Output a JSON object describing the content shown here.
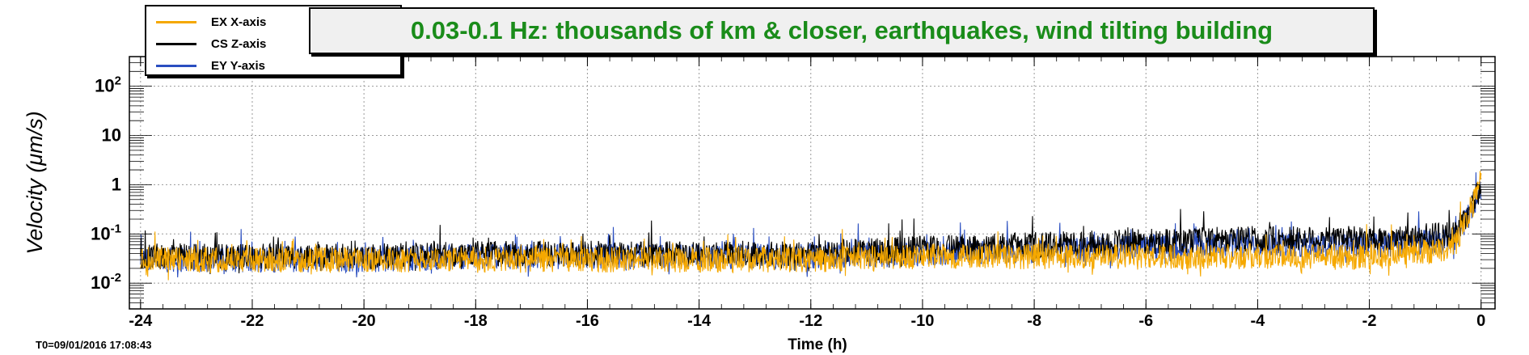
{
  "chart_data": {
    "type": "line",
    "title": "0.03-0.1 Hz: thousands of km & closer, earthquakes, wind tilting building",
    "xlabel": "Time (h)",
    "ylabel": "Velocity  (μm/s)",
    "xlim": [
      -24.2,
      0.25
    ],
    "ylim": [
      0.003,
      400
    ],
    "yscale": "log",
    "grid": true,
    "legend_position": "top-left",
    "x_ticks": [
      -24,
      -22,
      -20,
      -18,
      -16,
      -14,
      -12,
      -10,
      -8,
      -6,
      -4,
      -2,
      0
    ],
    "x_tick_labels": [
      "-24",
      "-22",
      "-20",
      "-18",
      "-16",
      "-14",
      "-12",
      "-10",
      "-8",
      "-6",
      "-4",
      "-2",
      "0"
    ],
    "y_ticks": [
      0.01,
      0.1,
      1,
      10,
      100
    ],
    "y_tick_labels": [
      {
        "base": "10",
        "exp": "-2"
      },
      {
        "base": "10",
        "exp": "-1"
      },
      {
        "base": "1",
        "exp": ""
      },
      {
        "base": "10",
        "exp": ""
      },
      {
        "base": "10",
        "exp": "2"
      }
    ],
    "series": [
      {
        "name": "EX X-axis",
        "color": "#f5a800",
        "x": [
          -24,
          -22,
          -20,
          -18,
          -16,
          -14,
          -12,
          -10,
          -8,
          -6,
          -4,
          -2,
          -0.5,
          -0.2,
          0
        ],
        "y": [
          0.03,
          0.03,
          0.03,
          0.03,
          0.03,
          0.03,
          0.03,
          0.035,
          0.035,
          0.035,
          0.035,
          0.035,
          0.05,
          0.3,
          1.2
        ]
      },
      {
        "name": "CS Z-axis",
        "color": "#000000",
        "x": [
          -24,
          -22,
          -20,
          -18,
          -16,
          -14,
          -12,
          -10,
          -8,
          -6,
          -4,
          -2,
          -0.5,
          -0.2,
          0
        ],
        "y": [
          0.035,
          0.035,
          0.035,
          0.04,
          0.04,
          0.04,
          0.04,
          0.05,
          0.06,
          0.07,
          0.08,
          0.08,
          0.1,
          0.3,
          0.9
        ]
      },
      {
        "name": "EY Y-axis",
        "color": "#2a4ec0",
        "x": [
          -24,
          -22,
          -20,
          -18,
          -16,
          -14,
          -12,
          -10,
          -8,
          -6,
          -4,
          -2,
          -0.5,
          -0.2,
          0
        ],
        "y": [
          0.03,
          0.03,
          0.03,
          0.035,
          0.035,
          0.035,
          0.035,
          0.04,
          0.045,
          0.055,
          0.06,
          0.06,
          0.07,
          0.25,
          0.8
        ]
      }
    ],
    "footer_label": "T0=09/01/2016 17:08:43"
  }
}
